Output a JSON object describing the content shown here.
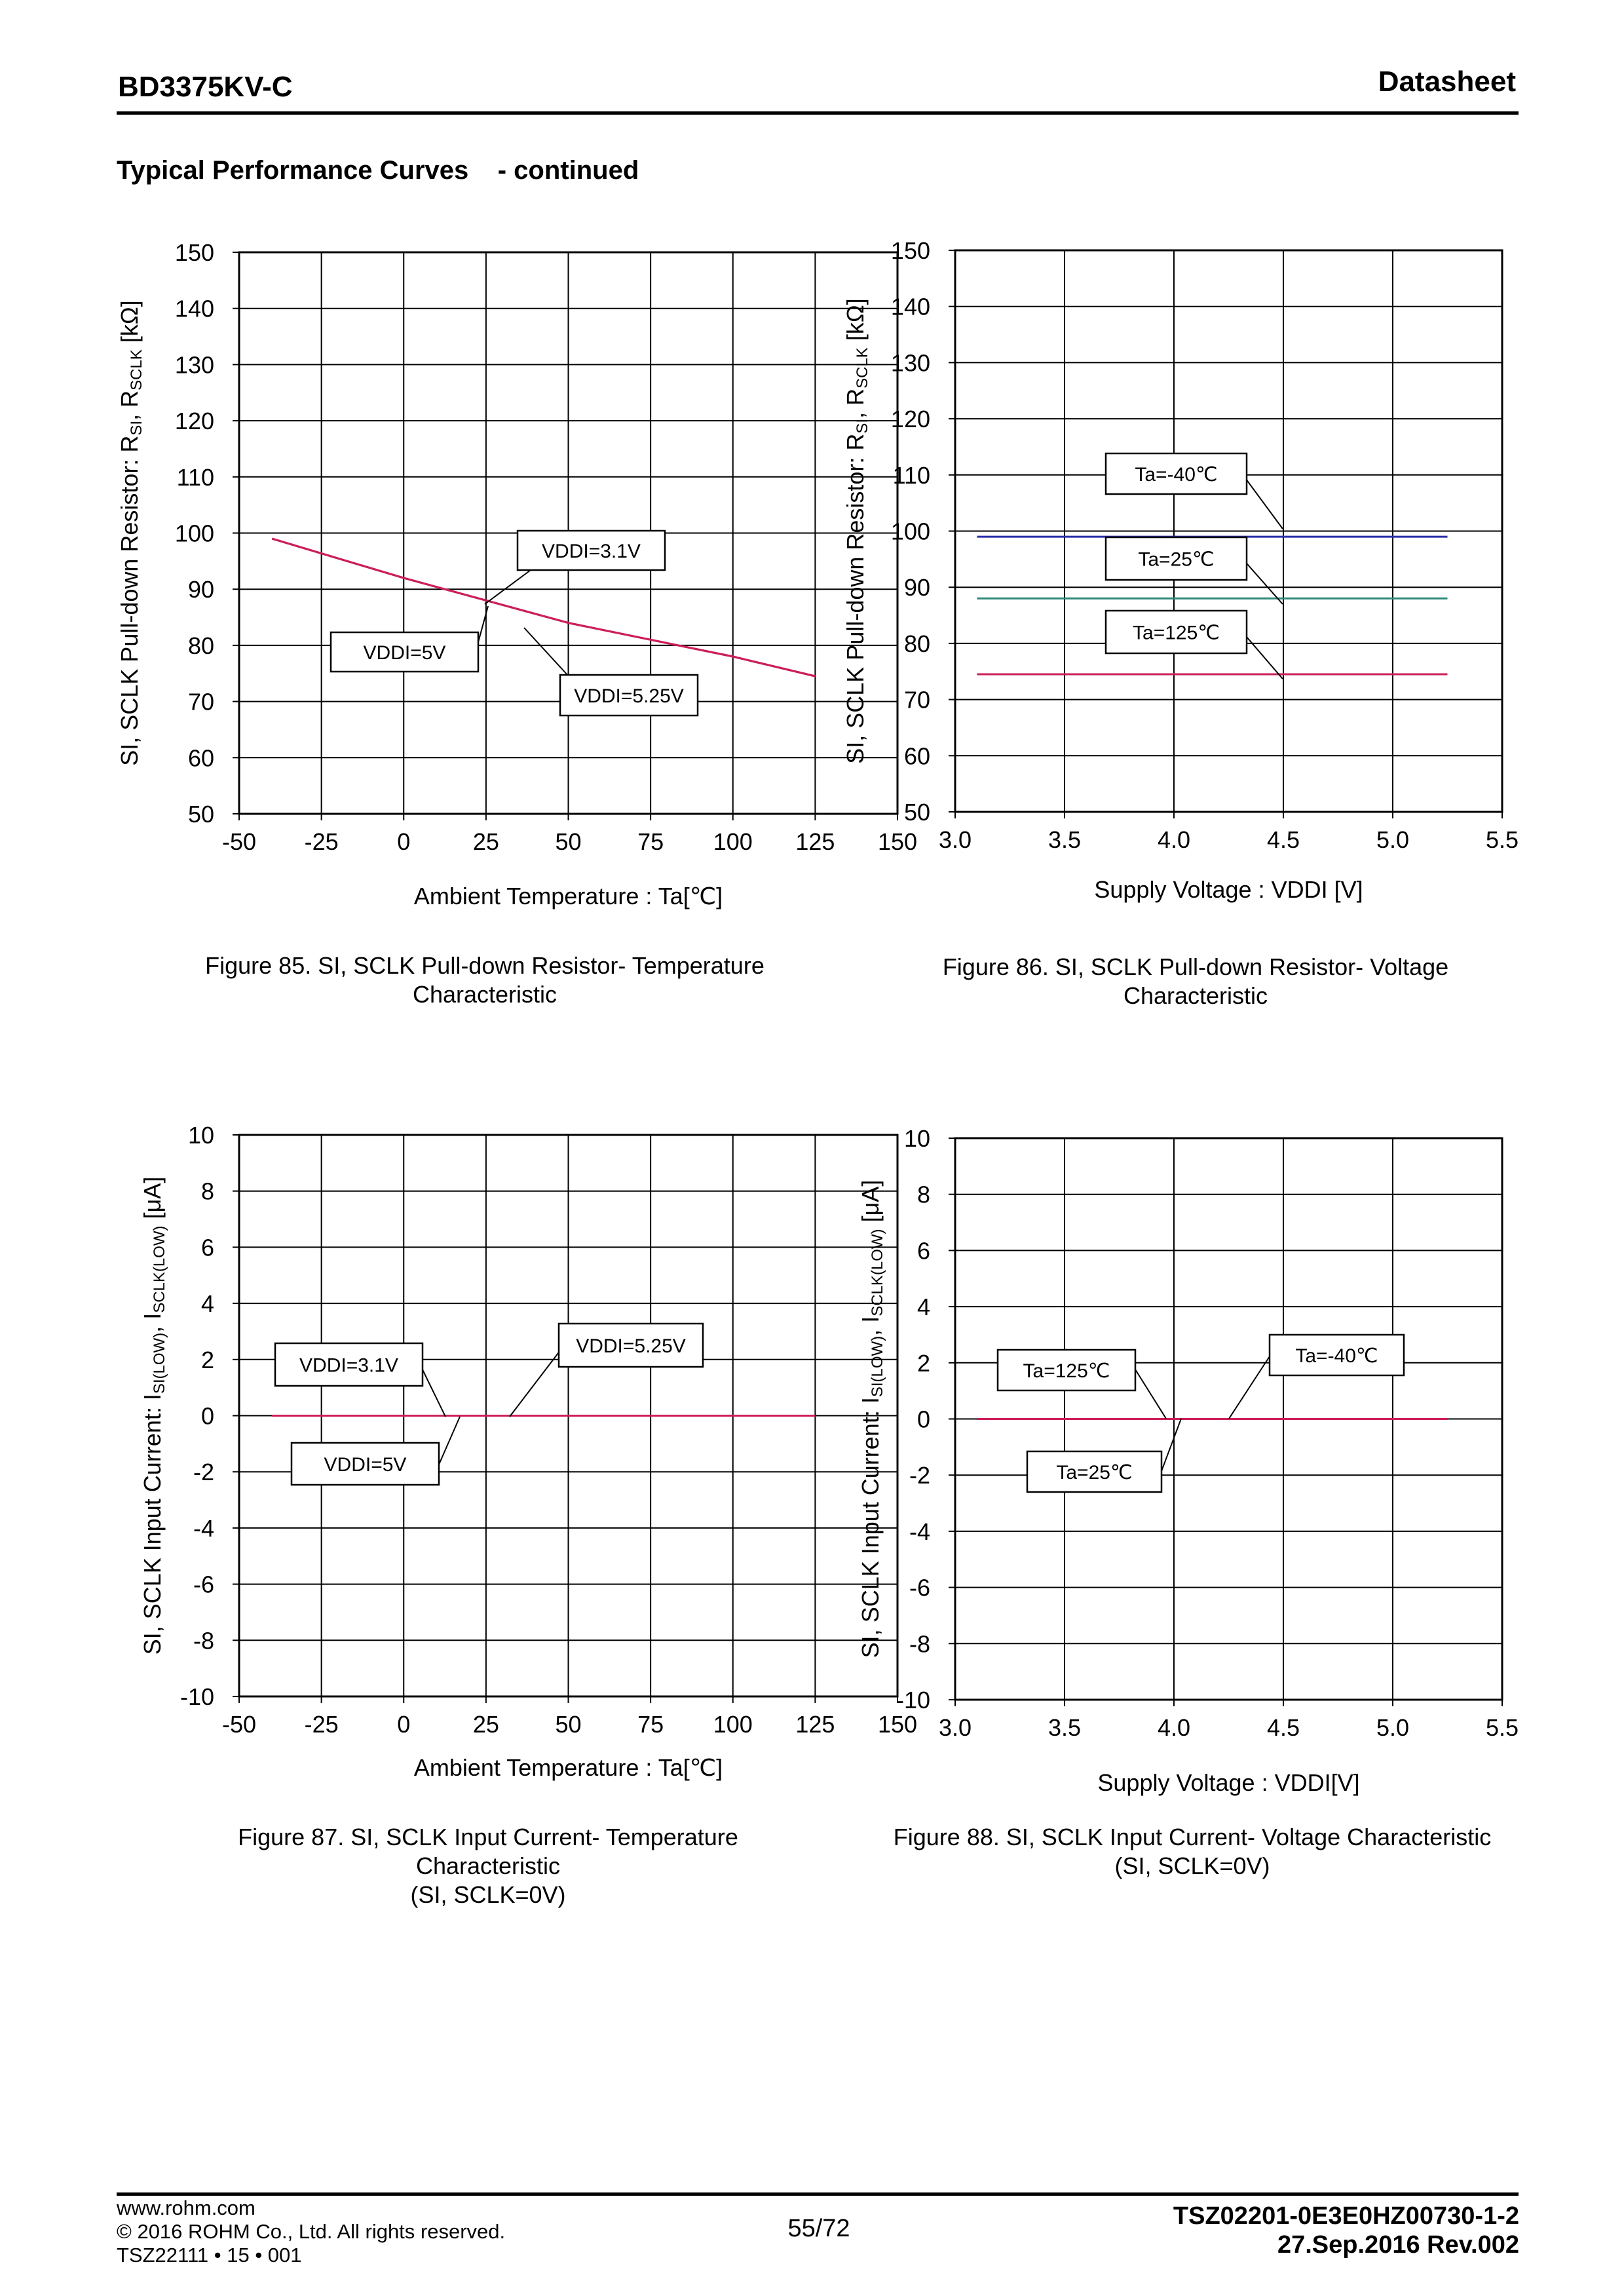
{
  "header": {
    "part_number": "BD3375KV-C",
    "doc_type": "Datasheet"
  },
  "section_title": "Typical Performance Curves    - continued",
  "figures": [
    {
      "caption_lines": [
        "Figure 85. SI, SCLK Pull-down Resistor- Temperature",
        "Characteristic"
      ]
    },
    {
      "caption_lines": [
        "Figure 86. SI, SCLK Pull-down Resistor- Voltage",
        "Characteristic"
      ]
    },
    {
      "caption_lines": [
        "Figure 87. SI, SCLK Input Current- Temperature",
        "Characteristic",
        "(SI, SCLK=0V)"
      ]
    },
    {
      "caption_lines": [
        "Figure 88. SI, SCLK Input Current- Voltage Characteristic",
        "(SI, SCLK=0V)"
      ]
    }
  ],
  "chart_data": [
    {
      "type": "line",
      "xlabel": "Ambient Temperature : Ta[℃]",
      "ylabel": "SI, SCLK Pull-down Resistor: R_SI, R_SCLK [kΩ]",
      "xlim": [
        -50,
        150
      ],
      "ylim": [
        50,
        150
      ],
      "x_ticks": [
        -50,
        -25,
        0,
        25,
        50,
        75,
        100,
        125,
        150
      ],
      "y_ticks": [
        50,
        60,
        70,
        80,
        90,
        100,
        110,
        120,
        130,
        140,
        150
      ],
      "grid": true,
      "series": [
        {
          "name": "VDDI=3.1V",
          "color": "#cc1f5a",
          "x": [
            -40,
            0,
            25,
            50,
            75,
            100,
            125
          ],
          "y": [
            99,
            92,
            88,
            84,
            81,
            78,
            74.5
          ]
        },
        {
          "name": "VDDI=5V",
          "color": "#cc1f5a",
          "x": [
            -40,
            0,
            25,
            50,
            75,
            100,
            125
          ],
          "y": [
            99,
            92,
            88,
            84,
            81,
            78,
            74.5
          ]
        },
        {
          "name": "VDDI=5.25V",
          "color": "#cc1f5a",
          "x": [
            -40,
            0,
            25,
            50,
            75,
            100,
            125
          ],
          "y": [
            99,
            92,
            88,
            84,
            81,
            78,
            74.5
          ]
        }
      ],
      "annotations": [
        "VDDI=3.1V",
        "VDDI=5V",
        "VDDI=5.25V"
      ]
    },
    {
      "type": "line",
      "xlabel": "Supply Voltage : VDDI [V]",
      "ylabel": "SI, SCLK Pull-down Resistor: R_SI, R_SCLK [kΩ]",
      "xlim": [
        3.0,
        5.5
      ],
      "ylim": [
        50,
        150
      ],
      "x_ticks": [
        "3.0",
        "3.5",
        "4.0",
        "4.5",
        "5.0",
        "5.5"
      ],
      "y_ticks": [
        50,
        60,
        70,
        80,
        90,
        100,
        110,
        120,
        130,
        140,
        150
      ],
      "grid": true,
      "series": [
        {
          "name": "Ta=-40℃",
          "color": "#2a2fa8",
          "x": [
            3.1,
            5.25
          ],
          "y": [
            99,
            99
          ]
        },
        {
          "name": "Ta=25℃",
          "color": "#2f8a78",
          "x": [
            3.1,
            5.25
          ],
          "y": [
            88,
            88
          ]
        },
        {
          "name": "Ta=125℃",
          "color": "#cc1f5a",
          "x": [
            3.1,
            5.25
          ],
          "y": [
            74.5,
            74.5
          ]
        }
      ],
      "annotations": [
        "Ta=-40℃",
        "Ta=25℃",
        "Ta=125℃"
      ]
    },
    {
      "type": "line",
      "xlabel": "Ambient Temperature : Ta[℃]",
      "ylabel": "SI, SCLK Input Current: I_SI(LOW), I_SCLK(LOW) [μA]",
      "xlim": [
        -50,
        150
      ],
      "ylim": [
        -10,
        10
      ],
      "x_ticks": [
        -50,
        -25,
        0,
        25,
        50,
        75,
        100,
        125,
        150
      ],
      "y_ticks": [
        -10,
        -8,
        -6,
        -4,
        -2,
        0,
        2,
        4,
        6,
        8,
        10
      ],
      "grid": true,
      "series": [
        {
          "name": "VDDI=3.1V",
          "color": "#cc1f5a",
          "x": [
            -40,
            125
          ],
          "y": [
            0,
            0
          ]
        },
        {
          "name": "VDDI=5V",
          "color": "#cc1f5a",
          "x": [
            -40,
            125
          ],
          "y": [
            0,
            0
          ]
        },
        {
          "name": "VDDI=5.25V",
          "color": "#cc1f5a",
          "x": [
            -40,
            125
          ],
          "y": [
            0,
            0
          ]
        }
      ],
      "annotations": [
        "VDDI=3.1V",
        "VDDI=5V",
        "VDDI=5.25V"
      ]
    },
    {
      "type": "line",
      "xlabel": "Supply Voltage : VDDI[V]",
      "ylabel": "SI, SCLK Input Current: I_SI(LOW), I_SCLK(LOW) [μA]",
      "xlim": [
        3.0,
        5.5
      ],
      "ylim": [
        -10,
        10
      ],
      "x_ticks": [
        "3.0",
        "3.5",
        "4.0",
        "4.5",
        "5.0",
        "5.5"
      ],
      "y_ticks": [
        -10,
        -8,
        -6,
        -4,
        -2,
        0,
        2,
        4,
        6,
        8,
        10
      ],
      "grid": true,
      "series": [
        {
          "name": "Ta=125℃",
          "color": "#cc1f5a",
          "x": [
            3.1,
            5.25
          ],
          "y": [
            0,
            0
          ]
        },
        {
          "name": "Ta=25℃",
          "color": "#cc1f5a",
          "x": [
            3.1,
            5.25
          ],
          "y": [
            0,
            0
          ]
        },
        {
          "name": "Ta=-40℃",
          "color": "#cc1f5a",
          "x": [
            3.1,
            5.25
          ],
          "y": [
            0,
            0
          ]
        }
      ],
      "annotations": [
        "Ta=125℃",
        "Ta=25℃",
        "Ta=-40℃"
      ]
    }
  ],
  "footer": {
    "url": "www.rohm.com",
    "copyright": "© 2016 ROHM Co., Ltd. All rights reserved.",
    "form_code": "TSZ22111 • 15 • 001",
    "page": "55/72",
    "doc_number": "TSZ02201-0E3E0HZ00730-1-2",
    "date_rev": "27.Sep.2016 Rev.002"
  }
}
